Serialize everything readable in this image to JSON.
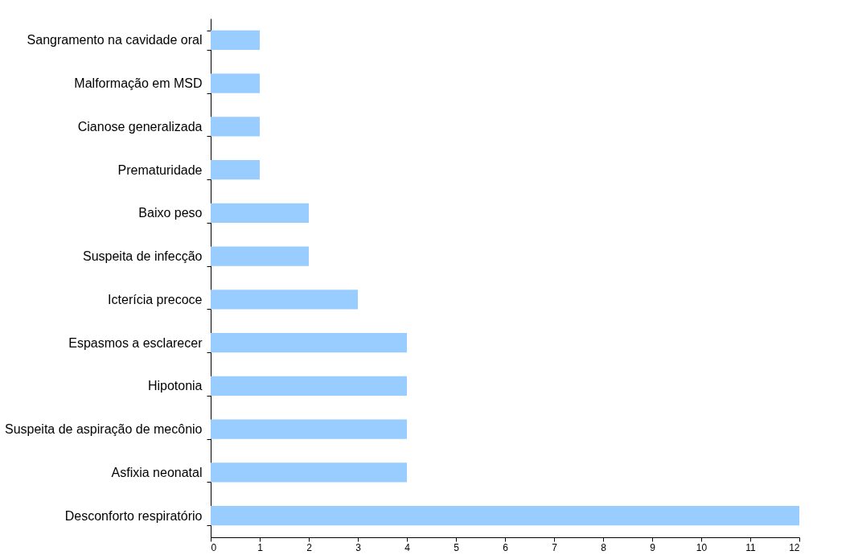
{
  "chart_data": {
    "type": "bar",
    "orientation": "horizontal",
    "categories": [
      "Sangramento na cavidade oral",
      "Malformação em MSD",
      "Cianose generalizada",
      "Prematuridade",
      "Baixo peso",
      "Suspeita de infecção",
      "Icterícia precoce",
      "Espasmos a esclarecer",
      "Hipotonia",
      "Suspeita de aspiração de mecônio",
      "Asfixia neonatal",
      "Desconforto respiratório"
    ],
    "values": [
      1,
      1,
      1,
      1,
      2,
      2,
      3,
      4,
      4,
      4,
      4,
      12
    ],
    "color": "#99ccff",
    "xlim": [
      0,
      12
    ],
    "xticks": [
      0,
      1,
      2,
      3,
      4,
      5,
      6,
      7,
      8,
      9,
      10,
      11,
      12
    ]
  }
}
